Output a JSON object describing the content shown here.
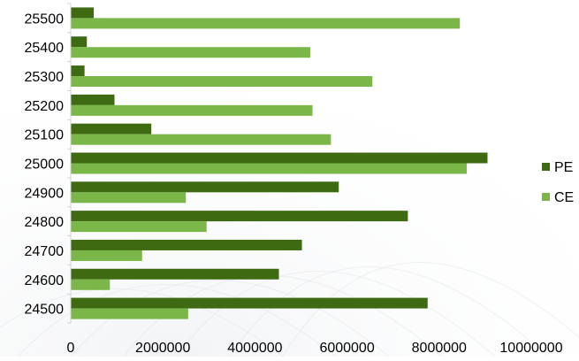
{
  "chart_data": {
    "type": "bar",
    "orientation": "horizontal",
    "categories": [
      "25500",
      "25400",
      "25300",
      "25200",
      "25100",
      "25000",
      "24900",
      "24800",
      "24700",
      "24600",
      "24500"
    ],
    "series": [
      {
        "name": "PE",
        "color": "#3e6b12",
        "values": [
          500000,
          350000,
          300000,
          950000,
          1750000,
          9050000,
          5820000,
          7320000,
          5020000,
          4520000,
          7750000
        ]
      },
      {
        "name": "CE",
        "color": "#7ab648",
        "values": [
          8450000,
          5200000,
          6550000,
          5250000,
          5650000,
          8600000,
          2500000,
          2950000,
          1550000,
          850000,
          2550000
        ]
      }
    ],
    "xlim": [
      0,
      10000000
    ],
    "xticks": [
      "0",
      "2000000",
      "4000000",
      "6000000",
      "8000000",
      "10000000"
    ],
    "title": "",
    "xlabel": "",
    "ylabel": "",
    "grid": false,
    "legend_position": "right"
  }
}
